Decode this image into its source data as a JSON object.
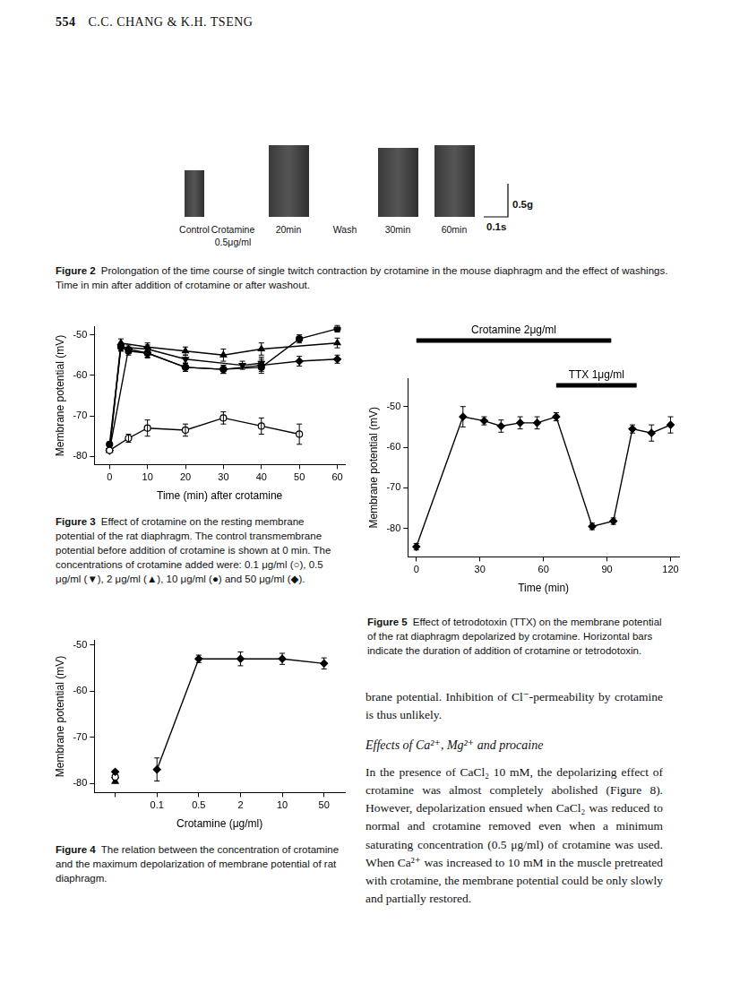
{
  "header": {
    "page": "554",
    "authors": "C.C. CHANG & K.H. TSENG"
  },
  "figure2": {
    "panels": [
      {
        "label": "Control",
        "trace": true
      },
      {
        "label": "Crotamine",
        "sublabel": "0.5μg/ml",
        "trace": false
      },
      {
        "label": "20min",
        "trace": true
      },
      {
        "label": "Wash",
        "trace": false
      },
      {
        "label": "30min",
        "trace": true
      },
      {
        "label": "60min",
        "trace": true
      }
    ],
    "scale_bar": {
      "force": "0.5g",
      "time": "0.1s"
    },
    "caption_label": "Figure 2",
    "caption": "Prolongation of the time course of single twitch contraction by crotamine in the mouse diaphragm and the effect of washings. Time in min after addition of crotamine or after washout."
  },
  "chart_data": [
    {
      "type": "line",
      "caption_label": "Figure 3",
      "caption": "Effect of crotamine on the resting membrane potential of the rat diaphragm. The control transmembrane potential before addition of crotamine is shown at 0 min. The concentrations of crotamine added were: 0.1 μg/ml (○), 0.5 μg/ml (▼), 2 μg/ml (▲), 10 μg/ml (●) and 50 μg/ml (◆).",
      "x_label": "Time (min) after crotamine",
      "y_label": "Membrane potential (mV)",
      "xlim": [
        -4,
        62
      ],
      "xticks": [
        0,
        10,
        20,
        30,
        40,
        50,
        60
      ],
      "ylim": [
        -82,
        -48
      ],
      "yticks": [
        -80,
        -70,
        -60,
        -50
      ],
      "grid": false,
      "color": "#000000",
      "series": [
        {
          "marker": "circle-open",
          "line_style": "solid",
          "x": [
            0,
            5,
            10,
            20,
            30,
            40,
            50
          ],
          "values": [
            -78.5,
            -75.5,
            -73,
            -73.5,
            -70.5,
            -72.5,
            -74.5
          ],
          "errors": [
            0,
            1,
            2,
            1.5,
            1.5,
            2,
            2.5
          ]
        },
        {
          "marker": "triangle-down",
          "line_style": "solid",
          "x": [
            0,
            3,
            10,
            20,
            35,
            40
          ],
          "values": [
            -78.5,
            -53,
            -53.5,
            -56,
            -57.5,
            -57
          ],
          "errors": [
            0,
            1,
            1,
            1,
            1,
            1.5
          ]
        },
        {
          "marker": "triangle",
          "line_style": "solid",
          "x": [
            0,
            3,
            10,
            20,
            30,
            40,
            60
          ],
          "values": [
            -78.5,
            -52,
            -53,
            -54,
            -55,
            -53.5,
            -52
          ],
          "errors": [
            0,
            1,
            1,
            1,
            1.5,
            1.5,
            1.2
          ]
        },
        {
          "marker": "circle",
          "line_style": "solid",
          "x": [
            0,
            3,
            5,
            10,
            20,
            30,
            40,
            50,
            60
          ],
          "values": [
            -77,
            -53,
            -54,
            -54.5,
            -58,
            -58.5,
            -58,
            -51,
            -48.5
          ],
          "errors": [
            0,
            1,
            1,
            1.2,
            1,
            1,
            1.5,
            1,
            0.8
          ]
        },
        {
          "marker": "diamond",
          "line_style": "solid",
          "x": [
            0,
            5,
            10,
            20,
            30,
            40,
            50,
            60
          ],
          "values": [
            -78.5,
            -53.5,
            -54.5,
            -58,
            -58.5,
            -57.5,
            -56.5,
            -56
          ],
          "errors": [
            0,
            1,
            1,
            1,
            1,
            1.5,
            1.2,
            1
          ]
        }
      ]
    },
    {
      "type": "line",
      "caption_label": "Figure 5",
      "caption": "Effect of tetrodotoxin (TTX) on the membrane potential of the rat diaphragm depolarized by crotamine. Horizontal bars indicate the duration of addition of crotamine or tetrodotoxin.",
      "x_label": "Time (min)",
      "y_label": "Membrane potential (mV)",
      "xlim": [
        -4,
        124
      ],
      "xticks": [
        0,
        30,
        60,
        90,
        120
      ],
      "ylim": [
        -87,
        -43
      ],
      "yticks": [
        -80,
        -70,
        -60,
        -50
      ],
      "grid": false,
      "color": "#000000",
      "bars": [
        {
          "label": "Crotamine 2μg/ml",
          "start": 0,
          "end": 92
        },
        {
          "label": "TTX 1μg/ml",
          "start": 66,
          "end": 104
        }
      ],
      "series": [
        {
          "marker": "diamond",
          "line_style": "solid",
          "x": [
            0,
            22,
            32,
            40,
            49,
            57,
            66,
            83,
            93,
            102,
            111,
            120
          ],
          "values": [
            -84.5,
            -52.5,
            -53.5,
            -54.8,
            -54,
            -54,
            -52.5,
            -79.5,
            -78.2,
            -55.5,
            -56.5,
            -54.5
          ],
          "errors": [
            0.8,
            2.5,
            1,
            1.5,
            1.5,
            1.5,
            1,
            0.8,
            0.8,
            1,
            2,
            2
          ]
        }
      ]
    },
    {
      "type": "line",
      "caption_label": "Figure 4",
      "caption": "The relation between the concentration of crotamine and the maximum depolarization of membrane potential of rat diaphragm.",
      "x_label": "Crotamine (μg/ml)",
      "y_label": "Membrane potential (mV)",
      "categories": [
        null,
        "0.1",
        "0.5",
        "2",
        "10",
        "50"
      ],
      "ylim": [
        -82,
        -49
      ],
      "yticks": [
        -80,
        -70,
        -60,
        -50
      ],
      "grid": false,
      "color": "#000000",
      "series": [
        {
          "marker": "diamond",
          "line_style": "solid",
          "values": [
            null,
            -77,
            -53,
            -53,
            -53,
            -54
          ],
          "errors": [
            null,
            2.5,
            0.8,
            1.5,
            1.2,
            1.2
          ]
        },
        {
          "marker": "diamond",
          "line_style": "none",
          "values": [
            -77.5,
            null,
            null,
            null,
            null,
            null
          ]
        },
        {
          "marker": "circle-open",
          "line_style": "none",
          "values": [
            -78.6,
            null,
            null,
            null,
            null,
            null
          ]
        },
        {
          "marker": "triangle-down",
          "line_style": "none",
          "values": [
            -79.1,
            null,
            null,
            null,
            null,
            null
          ]
        },
        {
          "marker": "triangle",
          "line_style": "none",
          "values": [
            -79.6,
            null,
            null,
            null,
            null,
            null
          ]
        }
      ]
    }
  ],
  "body": {
    "paragraph_1": "brane potential. Inhibition of Cl⁻-permeability by crotamine is thus unlikely.",
    "heading": "Effects of Ca²⁺, Mg²⁺ and procaine",
    "paragraph_2": "In the presence of CaCl₂ 10 mM, the depolarizing effect of crotamine was almost completely abolished (Figure 8). However, depolarization ensued when CaCl₂ was reduced to normal and crotamine removed even when a minimum saturating concentration (0.5 μg/ml) of crotamine was used. When Ca²⁺ was increased to 10 mM in the muscle pretreated with crotamine, the membrane potential could be only slowly and partially restored."
  }
}
